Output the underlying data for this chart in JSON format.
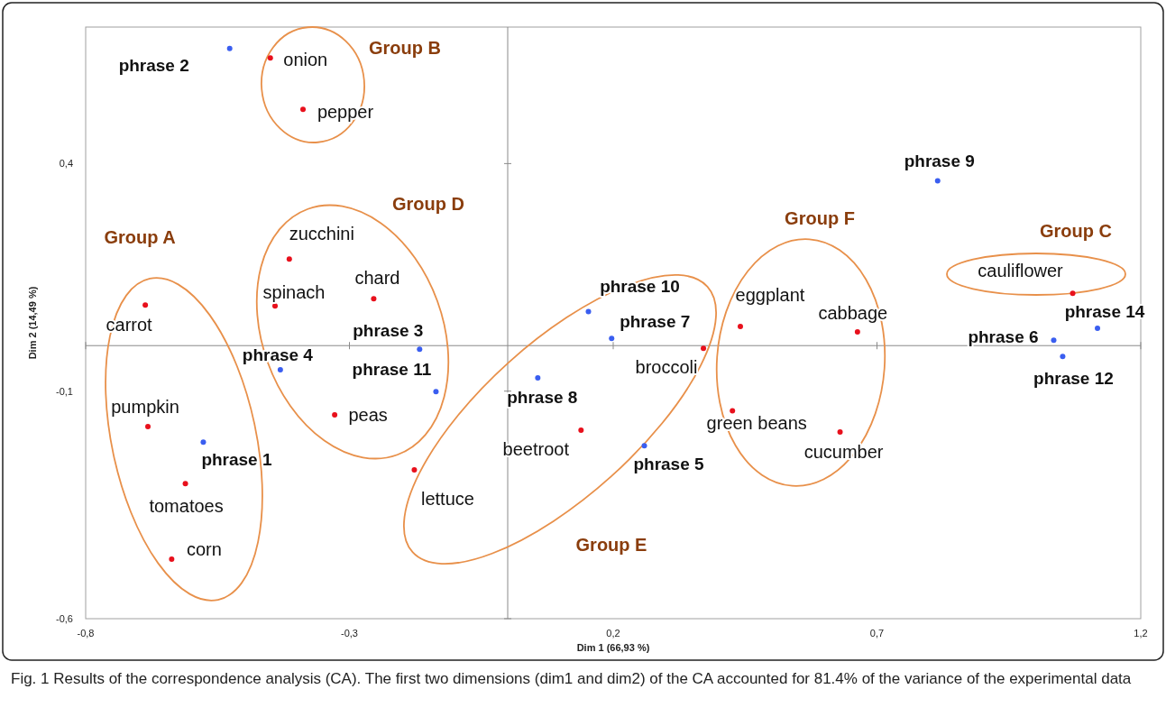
{
  "chart_data": {
    "type": "scatter",
    "xlabel": "Dim 1 (66,93 %)",
    "ylabel": "Dim 2 (14,49 %)",
    "xlim": [
      -0.8,
      1.2
    ],
    "ylim": [
      -0.6,
      0.7
    ],
    "xticks": [
      {
        "value": -0.8,
        "label": "-0,8"
      },
      {
        "value": -0.3,
        "label": "-0,3"
      },
      {
        "value": 0.2,
        "label": "0,2"
      },
      {
        "value": 0.7,
        "label": "0,7"
      },
      {
        "value": 1.2,
        "label": "1,2"
      }
    ],
    "yticks": [
      {
        "value": -0.6,
        "label": "-0,6"
      },
      {
        "value": -0.1,
        "label": "-0,1"
      },
      {
        "value": 0.4,
        "label": "0,4"
      }
    ],
    "grid": false,
    "marker": "circle",
    "series": [
      {
        "color": "#3a5ef0",
        "x": [
          -0.527,
          0.815,
          0.153,
          0.197,
          -0.167,
          -0.431,
          -0.136,
          0.057,
          -0.577,
          0.259,
          1.035,
          1.118,
          1.052
        ],
        "values": [
          0.653,
          0.362,
          0.075,
          0.016,
          -0.008,
          -0.053,
          -0.101,
          -0.071,
          -0.212,
          -0.22,
          0.012,
          0.038,
          -0.024
        ]
      },
      {
        "color": "#e8101c",
        "x": [
          -0.45,
          -0.388,
          -0.414,
          -0.254,
          -0.441,
          -0.687,
          -0.682,
          -0.611,
          -0.637,
          -0.328,
          -0.177,
          0.139,
          0.371,
          0.441,
          0.663,
          0.426,
          0.63,
          1.071
        ],
        "values": [
          0.632,
          0.519,
          0.19,
          0.103,
          0.087,
          0.089,
          -0.178,
          -0.303,
          -0.469,
          -0.152,
          -0.273,
          -0.186,
          -0.006,
          0.042,
          0.03,
          -0.143,
          -0.19,
          0.115
        ]
      }
    ],
    "annotations": [
      {
        "text": "phrase 2",
        "x": -0.527,
        "y": 0.653
      },
      {
        "text": "phrase 9",
        "x": 0.815,
        "y": 0.362
      },
      {
        "text": "phrase 10",
        "x": 0.153,
        "y": 0.075
      },
      {
        "text": "phrase 7",
        "x": 0.197,
        "y": 0.016
      },
      {
        "text": "phrase 3",
        "x": -0.167,
        "y": -0.008
      },
      {
        "text": "phrase 4",
        "x": -0.431,
        "y": -0.053
      },
      {
        "text": "phrase 11",
        "x": -0.136,
        "y": -0.101
      },
      {
        "text": "phrase 8",
        "x": 0.057,
        "y": -0.071
      },
      {
        "text": "phrase 1",
        "x": -0.577,
        "y": -0.212
      },
      {
        "text": "phrase 5",
        "x": 0.259,
        "y": -0.22
      },
      {
        "text": "phrase 6",
        "x": 1.035,
        "y": 0.012
      },
      {
        "text": "phrase 14",
        "x": 1.118,
        "y": 0.038
      },
      {
        "text": "phrase 12",
        "x": 1.052,
        "y": -0.024
      },
      {
        "text": "onion",
        "x": -0.45,
        "y": 0.632
      },
      {
        "text": "pepper",
        "x": -0.388,
        "y": 0.519
      },
      {
        "text": "zucchini",
        "x": -0.414,
        "y": 0.19
      },
      {
        "text": "chard",
        "x": -0.254,
        "y": 0.103
      },
      {
        "text": "spinach",
        "x": -0.441,
        "y": 0.087
      },
      {
        "text": "carrot",
        "x": -0.687,
        "y": 0.089
      },
      {
        "text": "pumpkin",
        "x": -0.682,
        "y": -0.178
      },
      {
        "text": "tomatoes",
        "x": -0.611,
        "y": -0.303
      },
      {
        "text": "corn",
        "x": -0.637,
        "y": -0.469
      },
      {
        "text": "peas",
        "x": -0.328,
        "y": -0.152
      },
      {
        "text": "lettuce",
        "x": -0.177,
        "y": -0.273
      },
      {
        "text": "beetroot",
        "x": 0.139,
        "y": -0.186
      },
      {
        "text": "broccoli",
        "x": 0.371,
        "y": -0.006
      },
      {
        "text": "eggplant",
        "x": 0.441,
        "y": 0.042
      },
      {
        "text": "cabbage",
        "x": 0.663,
        "y": 0.03
      },
      {
        "text": "green beans",
        "x": 0.426,
        "y": -0.143
      },
      {
        "text": "cucumber",
        "x": 0.63,
        "y": -0.19
      },
      {
        "text": "cauliflower",
        "x": 1.071,
        "y": 0.115
      },
      "Group A",
      "Group B",
      "Group C",
      "Group D",
      "Group E",
      "Group F",
      "Fig. 1 Results of the correspondence analysis (CA). The first two dimensions (dim1 and dim2) of the CA accounted for 81.4% of the variance of the experimental data"
    ]
  }
}
